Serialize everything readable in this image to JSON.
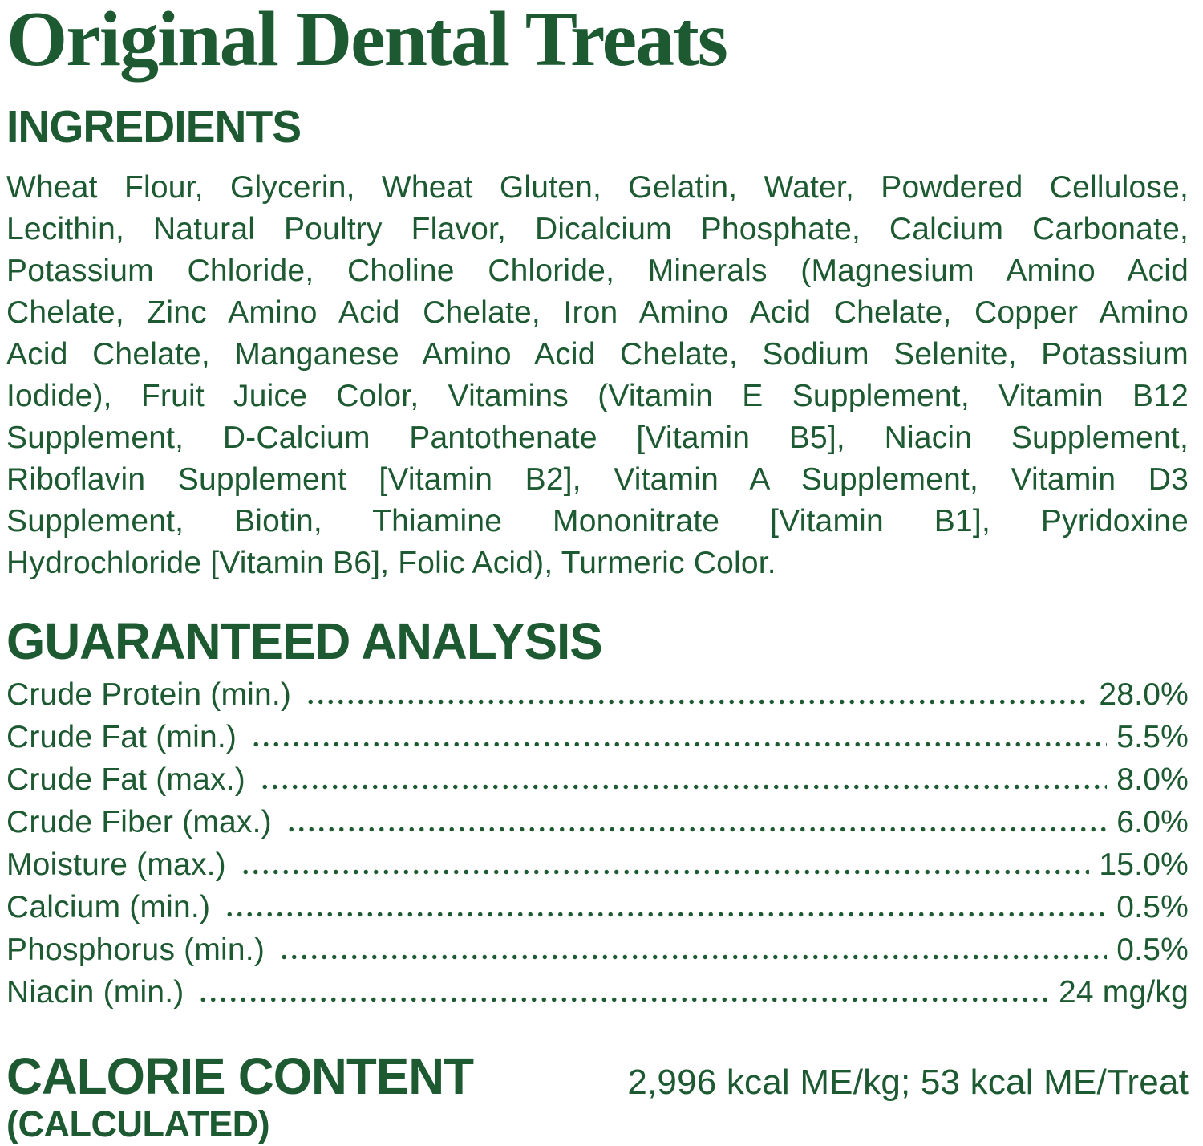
{
  "colors": {
    "green": "#1d5a32",
    "background": "#ffffff"
  },
  "title": "Original Dental Treats",
  "ingredients": {
    "heading": "INGREDIENTS",
    "lines": [
      "Wheat Flour, Glycerin, Wheat Gluten, Gelatin, Water, Powdered Cellulose,",
      "Lecithin, Natural Poultry Flavor, Dicalcium Phosphate, Calcium Carbonate,",
      "Potassium Chloride, Choline Chloride, Minerals (Magnesium Amino Acid",
      "Chelate, Zinc Amino Acid Chelate, Iron Amino Acid Chelate, Copper Amino",
      "Acid Chelate, Manganese Amino Acid Chelate, Sodium Selenite, Potassium",
      "Iodide), Fruit Juice Color, Vitamins (Vitamin E Supplement, Vitamin B12",
      "Supplement, D-Calcium Pantothenate [Vitamin B5], Niacin Supplement,",
      "Riboflavin Supplement [Vitamin B2], Vitamin A Supplement, Vitamin D3",
      "Supplement, Biotin, Thiamine Mononitrate [Vitamin B1], Pyridoxine",
      "Hydrochloride [Vitamin B6], Folic Acid), Turmeric Color."
    ]
  },
  "analysis": {
    "heading": "GUARANTEED ANALYSIS",
    "rows": [
      {
        "label": "Crude Protein (min.)",
        "value": "28.0%"
      },
      {
        "label": "Crude Fat (min.)",
        "value": "5.5%"
      },
      {
        "label": "Crude Fat (max.)",
        "value": "8.0%"
      },
      {
        "label": "Crude Fiber (max.)",
        "value": "6.0%"
      },
      {
        "label": "Moisture (max.)",
        "value": "15.0%"
      },
      {
        "label": "Calcium (min.)",
        "value": "0.5%"
      },
      {
        "label": "Phosphorus (min.)",
        "value": "0.5%"
      },
      {
        "label": "Niacin (min.)",
        "value": "24 mg/kg"
      }
    ]
  },
  "calorie": {
    "heading": "CALORIE CONTENT",
    "subheading": "(CALCULATED)",
    "value": "2,996 kcal ME/kg; 53 kcal ME/Treat"
  }
}
